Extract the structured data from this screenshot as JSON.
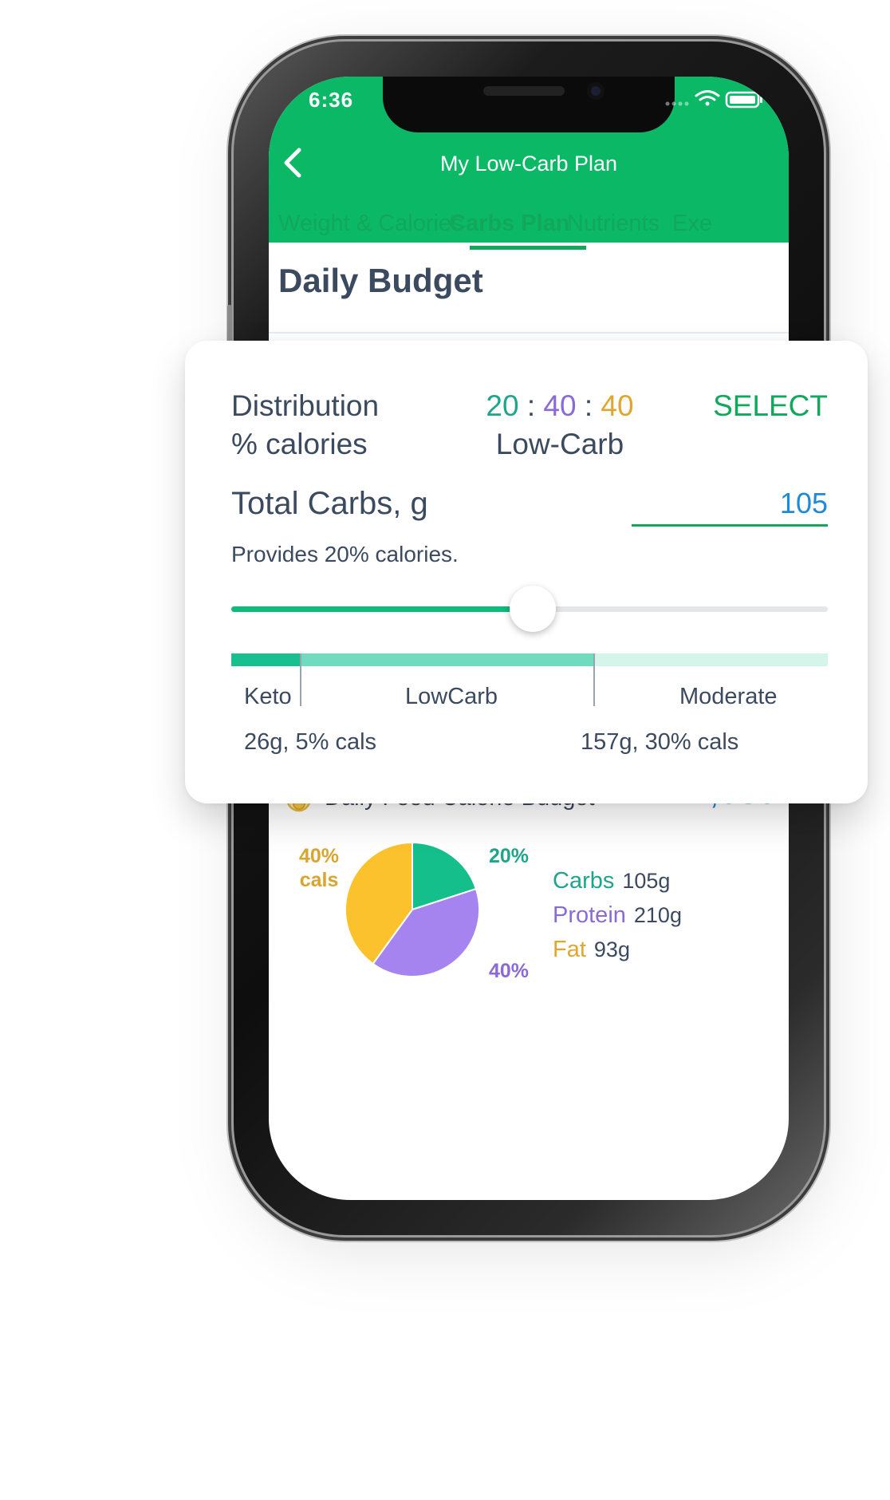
{
  "status_bar": {
    "time": "6:36"
  },
  "nav": {
    "title": "My Low-Carb Plan"
  },
  "tabs": [
    {
      "label": "Weight & Calories",
      "active": false
    },
    {
      "label": "Carbs Plan",
      "active": true
    },
    {
      "label": "Nutrients",
      "active": false
    },
    {
      "label": "Exe",
      "active": false
    }
  ],
  "page_title": "Daily Budget",
  "distribution": {
    "label_line1": "Distribution",
    "label_line2": "% calories",
    "ratio_carbs": "20",
    "ratio_protein": "40",
    "ratio_fat": "40",
    "separator": ":",
    "plan_name": "Low-Carb",
    "select_label": "SELECT"
  },
  "total_carbs": {
    "label": "Total Carbs, g",
    "value": "105",
    "provides_text": "Provides 20% calories.",
    "slider_fraction": 0.5
  },
  "ranges": {
    "keto_label": "Keto",
    "lowcarb_label": "LowCarb",
    "moderate_label": "Moderate",
    "keto_note": "26g, 5% cals",
    "moderate_note": "157g, 30% cals"
  },
  "calorie_budget": {
    "icon": "flame-icon",
    "label": "Daily Food Calorie Budget",
    "value": "2,089"
  },
  "chart_data": {
    "type": "pie",
    "slices": [
      {
        "name": "Carbs",
        "percent": 20,
        "label": "20%",
        "color": "#14bf8b"
      },
      {
        "name": "Protein",
        "percent": 40,
        "label": "40%",
        "color": "#a584f0"
      },
      {
        "name": "Fat",
        "percent": 40,
        "label": "40%\ncals",
        "color": "#fcc22d"
      }
    ]
  },
  "pie_labels": {
    "carbs": "20%",
    "protein": "40%",
    "fat_line1": "40%",
    "fat_line2": "cals"
  },
  "macros": [
    {
      "name": "Carbs",
      "amount": "105g",
      "color": "#14a884"
    },
    {
      "name": "Protein",
      "amount": "210g",
      "color": "#8c64e0"
    },
    {
      "name": "Fat",
      "amount": "93g",
      "color": "#e0a82a"
    }
  ],
  "colors": {
    "brand_green": "#0bb866",
    "carbs": "#1fa58a",
    "protein": "#8a6ad8",
    "fat": "#e0a630",
    "accent_blue": "#1f8ad6",
    "text": "#3b4a5e"
  }
}
